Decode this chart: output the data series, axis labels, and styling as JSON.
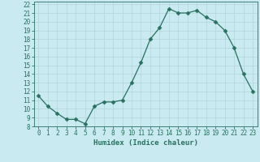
{
  "x": [
    0,
    1,
    2,
    3,
    4,
    5,
    6,
    7,
    8,
    9,
    10,
    11,
    12,
    13,
    14,
    15,
    16,
    17,
    18,
    19,
    20,
    21,
    22,
    23
  ],
  "y": [
    11.5,
    10.3,
    9.5,
    8.8,
    8.8,
    8.3,
    10.3,
    10.8,
    10.8,
    11.0,
    13.0,
    15.3,
    18.0,
    19.3,
    21.5,
    21.0,
    21.0,
    21.3,
    20.5,
    20.0,
    19.0,
    17.0,
    14.0,
    12.0
  ],
  "xlabel": "Humidex (Indice chaleur)",
  "bg_color": "#c8eaf0",
  "grid_color": "#b5d8de",
  "line_color": "#2a7060",
  "xlim": [
    -0.5,
    23.5
  ],
  "ylim": [
    8,
    22.3
  ],
  "yticks": [
    8,
    9,
    10,
    11,
    12,
    13,
    14,
    15,
    16,
    17,
    18,
    19,
    20,
    21,
    22
  ],
  "xticks": [
    0,
    1,
    2,
    3,
    4,
    5,
    6,
    7,
    8,
    9,
    10,
    11,
    12,
    13,
    14,
    15,
    16,
    17,
    18,
    19,
    20,
    21,
    22,
    23
  ]
}
